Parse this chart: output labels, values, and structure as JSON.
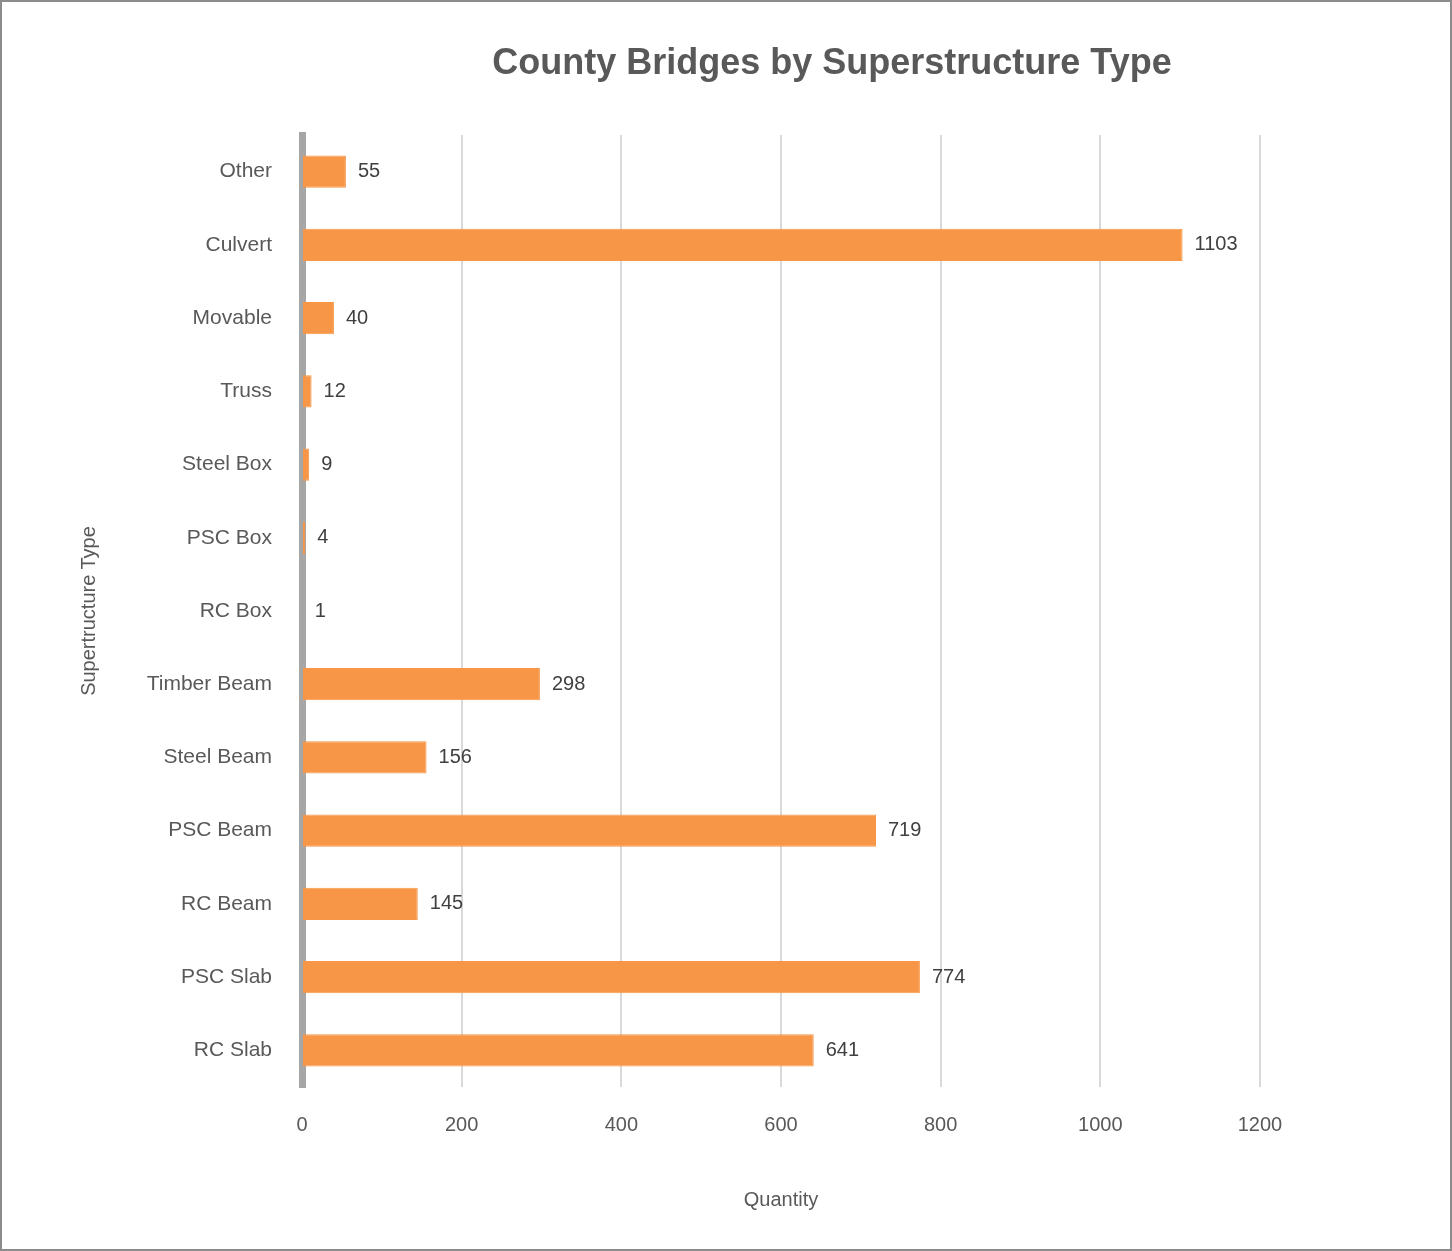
{
  "chart_data": {
    "type": "bar",
    "orientation": "horizontal",
    "title": "County Bridges by Superstructure Type",
    "xlabel": "Quantity",
    "ylabel": "Supertructure Type",
    "categories": [
      "Other",
      "Culvert",
      "Movable",
      "Truss",
      "Steel Box",
      "PSC Box",
      "RC Box",
      "Timber Beam",
      "Steel Beam",
      "PSC Beam",
      "RC Beam",
      "PSC Slab",
      "RC Slab"
    ],
    "values": [
      55,
      1103,
      40,
      12,
      9,
      4,
      1,
      298,
      156,
      719,
      145,
      774,
      641
    ],
    "color": "#f79646",
    "xlim": [
      0,
      1200
    ],
    "xticks": [
      0,
      200,
      400,
      600,
      800,
      1000,
      1200
    ],
    "grid": "x",
    "legend": false,
    "data_labels": true
  }
}
